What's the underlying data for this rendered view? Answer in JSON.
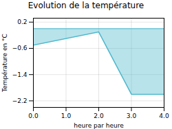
{
  "chart_data": {
    "type": "area",
    "title": "Evolution de la température",
    "xlabel": "heure par heure",
    "ylabel": "Température en °C",
    "x": [
      0,
      2,
      3,
      4
    ],
    "values": [
      -0.5,
      -0.1,
      -2.0,
      -2.0
    ],
    "xlim": [
      0,
      4
    ],
    "ylim": [
      -2.4,
      0.32
    ],
    "xticks": [
      0,
      1,
      2,
      3,
      4
    ],
    "yticks": [
      0.2,
      -0.6,
      -1.4,
      -2.2
    ],
    "grid": true,
    "color": "#4db8cc"
  }
}
